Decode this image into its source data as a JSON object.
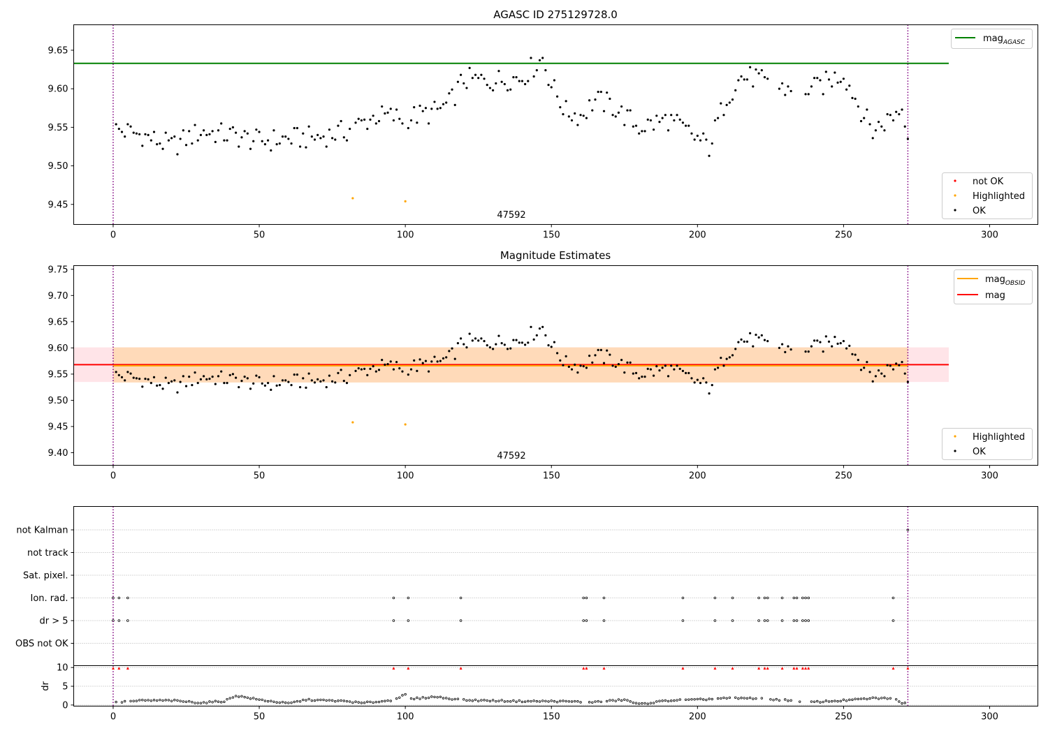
{
  "figure": {
    "colors": {
      "ok": "#000000",
      "highlighted": "#ffa500",
      "not_ok": "#ff0000",
      "agasc_line": "#008000",
      "obsid_line": "#ffa500",
      "mag_line": "#ff0000",
      "obsid_band": "#ffdab9",
      "mag_band": "#ffe4e8",
      "boundary": "#800080"
    }
  },
  "chart_data": [
    {
      "type": "scatter",
      "title": "AGASC ID 275129728.0",
      "xlim": [
        -13.5,
        316.5
      ],
      "ylim": [
        9.424,
        9.683
      ],
      "xticks": [
        0,
        50,
        100,
        150,
        200,
        250,
        300
      ],
      "yticks": [
        9.45,
        9.5,
        9.55,
        9.6,
        9.65
      ],
      "ytick_labels": [
        "9.45",
        "9.50",
        "9.55",
        "9.60",
        "9.65"
      ],
      "obsid_boundaries": [
        0,
        272
      ],
      "obsid_label": "47592",
      "mag_agasc": 9.633,
      "agasc_line_xrange": [
        -13.5,
        286
      ],
      "legend_top": [
        "mag_AGASC"
      ],
      "legend_top_main": "mag",
      "legend_top_sub": "AGASC",
      "legend_bottom": [
        "not OK",
        "Highlighted",
        "OK"
      ],
      "series": [
        {
          "name": "OK",
          "x": [],
          "y": []
        },
        {
          "name": "Highlighted",
          "x": [
            82,
            100
          ],
          "y": [
            9.458,
            9.454
          ]
        },
        {
          "name": "not OK",
          "x": [],
          "y": []
        }
      ]
    },
    {
      "type": "scatter",
      "title": "Magnitude Estimates",
      "xlim": [
        -13.5,
        316.5
      ],
      "ylim": [
        9.376,
        9.757
      ],
      "xticks": [
        0,
        50,
        100,
        150,
        200,
        250,
        300
      ],
      "yticks": [
        9.4,
        9.45,
        9.5,
        9.55,
        9.6,
        9.65,
        9.7,
        9.75
      ],
      "ytick_labels": [
        "9.40",
        "9.45",
        "9.50",
        "9.55",
        "9.60",
        "9.65",
        "9.70",
        "9.75"
      ],
      "obsid_boundaries": [
        0,
        272
      ],
      "obsid_label": "47592",
      "mag_obsid": 9.566,
      "mag_obsid_band": [
        9.534,
        9.601
      ],
      "mag_obsid_xrange": [
        0,
        272
      ],
      "mag": 9.568,
      "mag_band": [
        9.535,
        9.601
      ],
      "mag_xrange": [
        -13.5,
        286
      ],
      "legend_top_main_1": "mag",
      "legend_top_sub_1": "OBSID",
      "legend_top_2": "mag",
      "legend_bottom": [
        "Highlighted",
        "OK"
      ],
      "series": [
        {
          "name": "OK",
          "x": [],
          "y": []
        },
        {
          "name": "Highlighted",
          "x": [
            82,
            100
          ],
          "y": [
            9.458,
            9.454
          ]
        }
      ]
    },
    {
      "type": "scatter",
      "title": "",
      "xlim": [
        -13.5,
        316.5
      ],
      "categories": [
        "not Kalman",
        "not track",
        "Sat. pixel.",
        "Ion. rad.",
        "dr > 5",
        "OBS not OK"
      ],
      "flags": {
        "Ion. rad.": [
          0,
          2,
          5,
          96,
          101,
          119,
          161,
          162,
          168,
          195,
          206,
          212,
          221,
          223,
          224,
          229,
          233,
          234,
          236,
          237,
          238,
          267
        ],
        "dr > 5": [
          0,
          2,
          5,
          96,
          101,
          119,
          161,
          162,
          168,
          195,
          206,
          212,
          221,
          223,
          224,
          229,
          233,
          234,
          236,
          237,
          238,
          267
        ],
        "not Kalman": [
          272
        ]
      }
    },
    {
      "type": "scatter",
      "title": "",
      "xlim": [
        -13.5,
        316.5
      ],
      "ylim": [
        -0.3,
        10.5
      ],
      "xticks": [
        0,
        50,
        100,
        150,
        200,
        250,
        300
      ],
      "yticks": [
        0,
        5,
        10
      ],
      "ylabel": "dr",
      "dr_ok": [],
      "dr_flagged_x": [
        0,
        2,
        5,
        96,
        101,
        119,
        161,
        162,
        168,
        195,
        206,
        212,
        221,
        223,
        224,
        229,
        233,
        234,
        236,
        237,
        238,
        267,
        272
      ],
      "dr_flagged_y": 10
    }
  ]
}
